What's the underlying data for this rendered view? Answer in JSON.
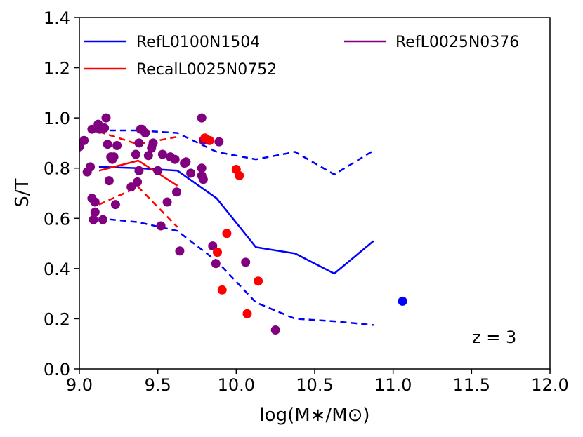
{
  "chart_data": {
    "type": "scatter",
    "title": "",
    "xlabel": "log(M∗/M⊙)",
    "ylabel": "S/T",
    "xlim": [
      9.0,
      12.0
    ],
    "ylim": [
      0.0,
      1.4
    ],
    "xticks": [
      9.0,
      9.5,
      10.0,
      10.5,
      11.0,
      11.5,
      12.0
    ],
    "xtick_labels": [
      "9.0",
      "9.5",
      "10.0",
      "10.5",
      "11.0",
      "11.5",
      "12.0"
    ],
    "yticks": [
      0.0,
      0.2,
      0.4,
      0.6,
      0.8,
      1.0,
      1.2,
      1.4
    ],
    "ytick_labels": [
      "0.0",
      "0.2",
      "0.4",
      "0.6",
      "0.8",
      "1.0",
      "1.2",
      "1.4"
    ],
    "grid": false,
    "legend_position": "top",
    "annotation": "z = 3",
    "colors": {
      "ref100": "#0000ff",
      "recal": "#ff0000",
      "ref25": "#800080"
    },
    "legend": [
      {
        "label": "RefL0100N1504",
        "color": "#0000ff"
      },
      {
        "label": "RecalL0025N0752",
        "color": "#ff0000"
      },
      {
        "label": "RefL0025N0376",
        "color": "#800080"
      }
    ],
    "series_lines": [
      {
        "name": "RefL0100N1504 median",
        "color": "#0000ff",
        "style": "solid",
        "x": [
          9.125,
          9.375,
          9.625,
          9.875,
          10.125,
          10.375,
          10.625,
          10.875
        ],
        "y": [
          0.805,
          0.8,
          0.79,
          0.68,
          0.485,
          0.46,
          0.38,
          0.51
        ]
      },
      {
        "name": "RefL0100N1504 upper",
        "color": "#0000ff",
        "style": "dashed",
        "x": [
          9.125,
          9.375,
          9.625,
          9.875,
          10.125,
          10.375,
          10.625,
          10.875
        ],
        "y": [
          0.95,
          0.95,
          0.94,
          0.865,
          0.835,
          0.865,
          0.775,
          0.87
        ]
      },
      {
        "name": "RefL0100N1504 lower",
        "color": "#0000ff",
        "style": "dashed",
        "x": [
          9.125,
          9.375,
          9.625,
          9.875,
          10.125,
          10.375,
          10.625,
          10.875
        ],
        "y": [
          0.6,
          0.585,
          0.55,
          0.43,
          0.265,
          0.2,
          0.19,
          0.175
        ]
      },
      {
        "name": "RecalL0025N0752 median",
        "color": "#ff0000",
        "style": "solid",
        "x": [
          9.125,
          9.375,
          9.625
        ],
        "y": [
          0.79,
          0.83,
          0.73
        ]
      },
      {
        "name": "RecalL0025N0752 upper",
        "color": "#ff0000",
        "style": "dashed",
        "x": [
          9.125,
          9.375,
          9.625
        ],
        "y": [
          0.945,
          0.895,
          0.925
        ]
      },
      {
        "name": "RecalL0025N0752 lower",
        "color": "#ff0000",
        "style": "dashed",
        "x": [
          9.125,
          9.375,
          9.625
        ],
        "y": [
          0.655,
          0.725,
          0.565
        ]
      }
    ],
    "series_points": [
      {
        "name": "RefL0025N0376",
        "color": "#800080",
        "x": [
          9.0,
          9.03,
          9.05,
          9.07,
          9.08,
          9.08,
          9.09,
          9.1,
          9.1,
          9.12,
          9.13,
          9.15,
          9.16,
          9.17,
          9.18,
          9.19,
          9.2,
          9.21,
          9.22,
          9.23,
          9.24,
          9.33,
          9.36,
          9.37,
          9.38,
          9.38,
          9.39,
          9.4,
          9.42,
          9.44,
          9.46,
          9.47,
          9.5,
          9.52,
          9.53,
          9.56,
          9.58,
          9.61,
          9.62,
          9.64,
          9.67,
          9.68,
          9.71,
          9.78,
          9.78,
          9.78,
          9.79,
          9.79,
          9.85,
          9.87,
          9.89,
          10.06,
          10.25
        ],
        "y": [
          0.885,
          0.91,
          0.785,
          0.805,
          0.68,
          0.955,
          0.595,
          0.625,
          0.665,
          0.975,
          0.955,
          0.595,
          0.96,
          1.0,
          0.895,
          0.75,
          0.845,
          0.835,
          0.845,
          0.655,
          0.89,
          0.725,
          0.855,
          0.745,
          0.79,
          0.9,
          0.955,
          0.955,
          0.94,
          0.85,
          0.88,
          0.9,
          0.79,
          0.57,
          0.855,
          0.665,
          0.845,
          0.835,
          0.705,
          0.47,
          0.82,
          0.825,
          0.78,
          1.0,
          0.8,
          0.77,
          0.755,
          0.91,
          0.49,
          0.42,
          0.905,
          0.425,
          0.155
        ]
      },
      {
        "name": "RecalL0025N0752",
        "color": "#ff0000",
        "x": [
          9.8,
          9.83,
          9.88,
          9.91,
          9.94,
          10.0,
          10.02,
          10.07,
          10.14
        ],
        "y": [
          0.92,
          0.91,
          0.465,
          0.315,
          0.54,
          0.795,
          0.77,
          0.22,
          0.35
        ]
      },
      {
        "name": "RefL0100N1504",
        "color": "#0000ff",
        "x": [
          11.06
        ],
        "y": [
          0.27
        ]
      }
    ]
  }
}
